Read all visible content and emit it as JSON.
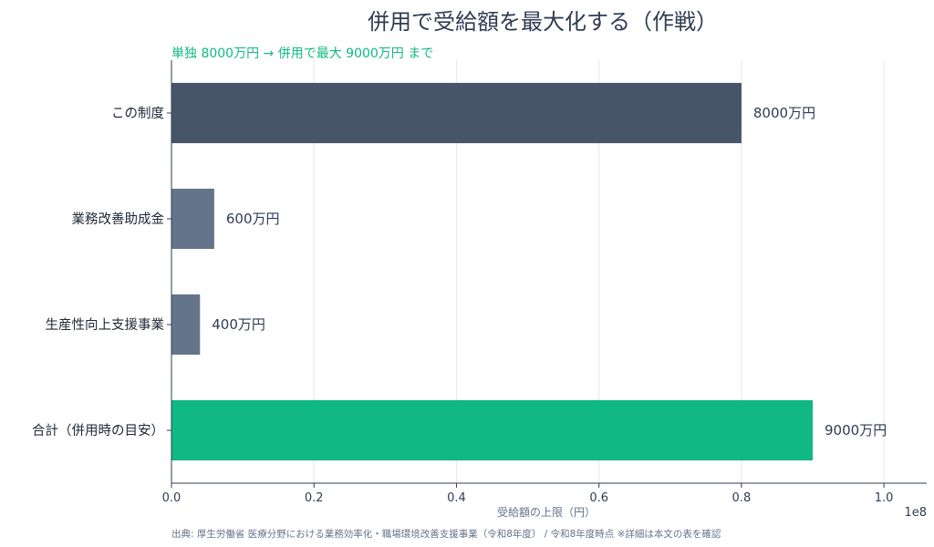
{
  "title": "併用で受給額を最大化する（作戦）",
  "subtitle": "単独 8000万円 → 併用で最大 9000万円 まで",
  "source": "出典: 厚生労働省 医療分野における業務効率化・職場環境改善支援事業（令和8年度） / 令和8年度時点 ※詳細は本文の表を確認",
  "colors": {
    "primary": "#475569",
    "secondary": "#64748b",
    "accent": "#10b981",
    "text": "#2f3d52"
  },
  "chart_data": {
    "type": "bar",
    "orientation": "horizontal",
    "categories": [
      "この制度",
      "業務改善助成金",
      "生産性向上支援事業",
      "合計（併用時の目安）"
    ],
    "values": [
      80000000,
      6000000,
      4000000,
      90000000
    ],
    "data_labels": [
      "8000万円",
      "600万円",
      "400万円",
      "9000万円"
    ],
    "bar_colors": [
      "#475569",
      "#64748b",
      "#64748b",
      "#10b981"
    ],
    "xlabel": "受給額の上限（円）",
    "xlim": [
      0,
      106000000
    ],
    "xticks": [
      0,
      20000000,
      40000000,
      60000000,
      80000000,
      100000000
    ],
    "xtick_labels": [
      "0.0",
      "0.2",
      "0.4",
      "0.6",
      "0.8",
      "1.0"
    ],
    "x_offset_label": "1e8",
    "grid": "x"
  }
}
